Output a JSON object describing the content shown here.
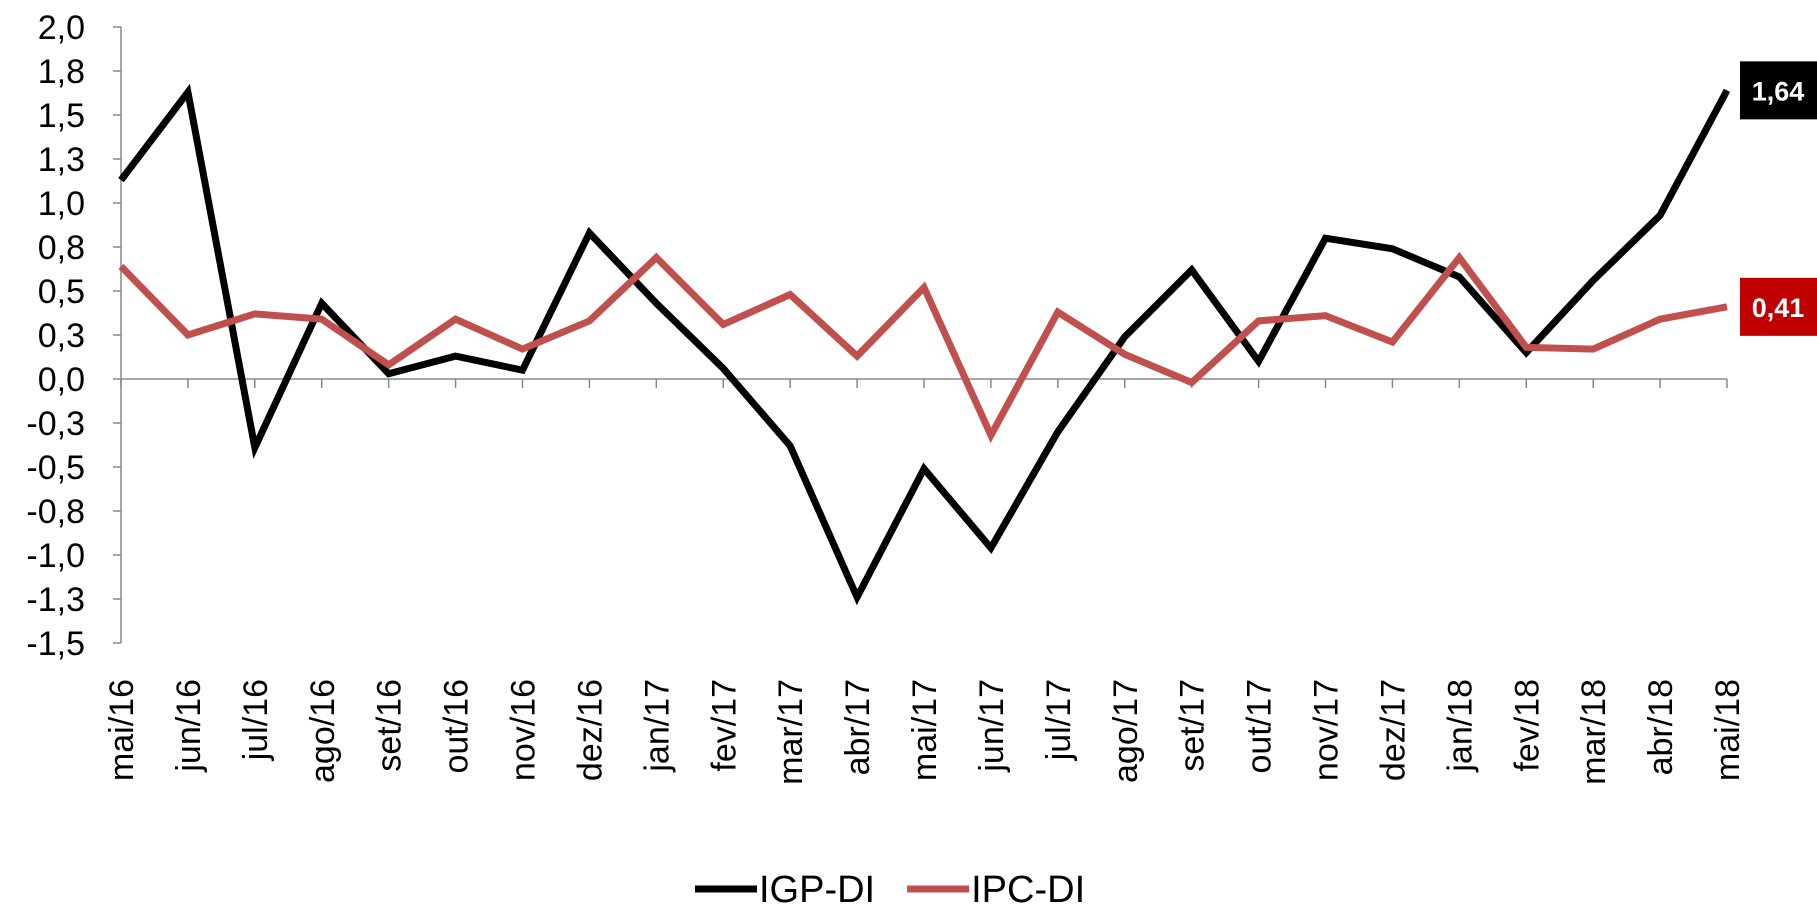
{
  "chart_data": {
    "type": "line",
    "categories": [
      "mai/16",
      "jun/16",
      "jul/16",
      "ago/16",
      "set/16",
      "out/16",
      "nov/16",
      "dez/16",
      "jan/17",
      "fev/17",
      "mar/17",
      "abr/17",
      "mai/17",
      "jun/17",
      "jul/17",
      "ago/17",
      "set/17",
      "out/17",
      "nov/17",
      "dez/17",
      "jan/18",
      "fev/18",
      "mar/18",
      "abr/18",
      "mai/18"
    ],
    "series": [
      {
        "name": "IGP-DI",
        "color": "#000000",
        "values": [
          1.13,
          1.63,
          -0.39,
          0.43,
          0.03,
          0.13,
          0.05,
          0.83,
          0.43,
          0.06,
          -0.38,
          -1.24,
          -0.51,
          -0.96,
          -0.3,
          0.24,
          0.62,
          0.1,
          0.8,
          0.74,
          0.58,
          0.15,
          0.56,
          0.93,
          1.64
        ],
        "value_labels": [
          null,
          null,
          null,
          null,
          null,
          null,
          null,
          null,
          null,
          null,
          null,
          null,
          null,
          null,
          null,
          null,
          null,
          null,
          null,
          null,
          null,
          null,
          null,
          null,
          "1,64"
        ],
        "label_color": "#000000"
      },
      {
        "name": "IPC-DI",
        "color": "#c0504d",
        "values": [
          0.64,
          0.25,
          0.37,
          0.34,
          0.08,
          0.34,
          0.17,
          0.33,
          0.69,
          0.31,
          0.48,
          0.13,
          0.52,
          -0.32,
          0.38,
          0.14,
          -0.02,
          0.33,
          0.36,
          0.21,
          0.69,
          0.18,
          0.17,
          0.34,
          0.41
        ],
        "value_labels": [
          null,
          null,
          null,
          null,
          null,
          null,
          null,
          null,
          null,
          null,
          null,
          null,
          null,
          null,
          null,
          null,
          null,
          null,
          null,
          null,
          null,
          null,
          null,
          null,
          "0,41"
        ],
        "label_color": "#c00000"
      }
    ],
    "ylim": [
      -1.5,
      2.0
    ],
    "yticks": [
      {
        "value": 2.0,
        "label": "2,0"
      },
      {
        "value": 1.75,
        "label": "1,8"
      },
      {
        "value": 1.5,
        "label": "1,5"
      },
      {
        "value": 1.25,
        "label": "1,3"
      },
      {
        "value": 1.0,
        "label": "1,0"
      },
      {
        "value": 0.75,
        "label": "0,8"
      },
      {
        "value": 0.5,
        "label": "0,5"
      },
      {
        "value": 0.25,
        "label": "0,3"
      },
      {
        "value": 0.0,
        "label": "0,0"
      },
      {
        "value": -0.25,
        "label": "-0,3"
      },
      {
        "value": -0.5,
        "label": "-0,5"
      },
      {
        "value": -0.75,
        "label": "-0,8"
      },
      {
        "value": -1.0,
        "label": "-1,0"
      },
      {
        "value": -1.25,
        "label": "-1,3"
      },
      {
        "value": -1.5,
        "label": "-1,5"
      }
    ],
    "grid": false,
    "legend": "bottom"
  }
}
